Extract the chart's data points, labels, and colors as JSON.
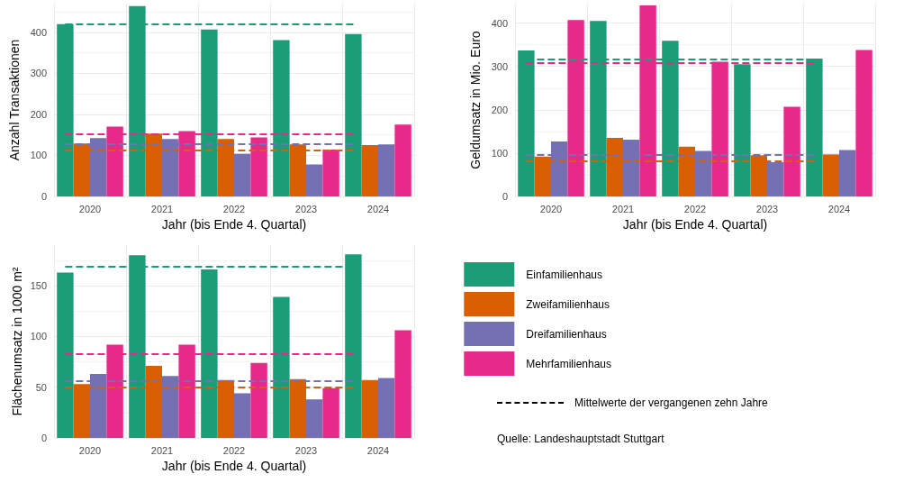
{
  "chart_data": [
    {
      "type": "bar",
      "xlabel": "Jahr (bis Ende 4. Quartal)",
      "ylabel": "Anzahl Transaktionen",
      "categories": [
        "2020",
        "2021",
        "2022",
        "2023",
        "2024"
      ],
      "ylim": [
        0,
        470
      ],
      "yticks": [
        0,
        100,
        200,
        300,
        400
      ],
      "grid": true,
      "series": [
        {
          "color": "#1b9e77",
          "values": [
            420,
            464,
            407,
            381,
            396
          ]
        },
        {
          "color": "#d95f02",
          "values": [
            129,
            153,
            140,
            127,
            125
          ]
        },
        {
          "color": "#7570b3",
          "values": [
            142,
            140,
            104,
            78,
            127
          ]
        },
        {
          "color": "#e7298a",
          "values": [
            170,
            159,
            144,
            114,
            175
          ]
        }
      ],
      "ref_lines": [
        {
          "axis": "y",
          "value": 419,
          "color": "#1b9e77",
          "line_style": "dashed"
        },
        {
          "axis": "y",
          "value": 151,
          "color": "#e7298a",
          "line_style": "dashed"
        },
        {
          "axis": "y",
          "value": 127,
          "color": "#7570b3",
          "line_style": "dashed"
        },
        {
          "axis": "y",
          "value": 113,
          "color": "#d95f02",
          "line_style": "dashed"
        }
      ]
    },
    {
      "type": "bar",
      "xlabel": "Jahr (bis Ende 4. Quartal)",
      "ylabel": "Geldumsatz in Mio. Euro",
      "categories": [
        "2020",
        "2021",
        "2022",
        "2023",
        "2024"
      ],
      "ylim": [
        0,
        445
      ],
      "yticks": [
        0,
        100,
        200,
        300,
        400
      ],
      "grid": true,
      "series": [
        {
          "color": "#1b9e77",
          "values": [
            337,
            405,
            359,
            305,
            318
          ]
        },
        {
          "color": "#d95f02",
          "values": [
            92,
            135,
            115,
            95,
            97
          ]
        },
        {
          "color": "#7570b3",
          "values": [
            127,
            131,
            105,
            79,
            107
          ]
        },
        {
          "color": "#e7298a",
          "values": [
            407,
            441,
            311,
            207,
            338
          ]
        }
      ],
      "ref_lines": [
        {
          "axis": "y",
          "value": 316,
          "color": "#1b9e77",
          "line_style": "dashed"
        },
        {
          "axis": "y",
          "value": 309,
          "color": "#e7298a",
          "line_style": "dashed"
        },
        {
          "axis": "y",
          "value": 97,
          "color": "#7570b3",
          "line_style": "dashed"
        },
        {
          "axis": "y",
          "value": 81,
          "color": "#d95f02",
          "line_style": "dashed"
        }
      ]
    },
    {
      "type": "bar",
      "xlabel": "Jahr (bis Ende 4. Quartal)",
      "ylabel": "Flächenumsatz in 1000 m²",
      "categories": [
        "2020",
        "2021",
        "2022",
        "2023",
        "2024"
      ],
      "ylim": [
        0,
        190
      ],
      "yticks": [
        0,
        50,
        100,
        150
      ],
      "grid": true,
      "legend": "right",
      "series": [
        {
          "name": "Einfamilienhaus",
          "color": "#1b9e77",
          "values": [
            163,
            180,
            166,
            139,
            181
          ]
        },
        {
          "name": "Zweifamilienhaus",
          "color": "#d95f02",
          "values": [
            53,
            71,
            57,
            58,
            57
          ]
        },
        {
          "name": "Dreifamilienhaus",
          "color": "#7570b3",
          "values": [
            63,
            61,
            44,
            38,
            59
          ]
        },
        {
          "name": "Mehrfamilienhaus",
          "color": "#e7298a",
          "values": [
            92,
            92,
            74,
            49,
            106
          ]
        }
      ],
      "ref_lines": [
        {
          "axis": "y",
          "value": 169,
          "color": "#1b9e77",
          "line_style": "dashed"
        },
        {
          "axis": "y",
          "value": 83,
          "color": "#e7298a",
          "line_style": "dashed"
        },
        {
          "axis": "y",
          "value": 56,
          "color": "#7570b3",
          "line_style": "dashed"
        },
        {
          "axis": "y",
          "value": 50,
          "color": "#d95f02",
          "line_style": "dashed"
        }
      ],
      "annotations": [
        "Mittelwerte der vergangenen zehn Jahre",
        "Quelle: Landeshauptstadt Stuttgart"
      ]
    }
  ]
}
